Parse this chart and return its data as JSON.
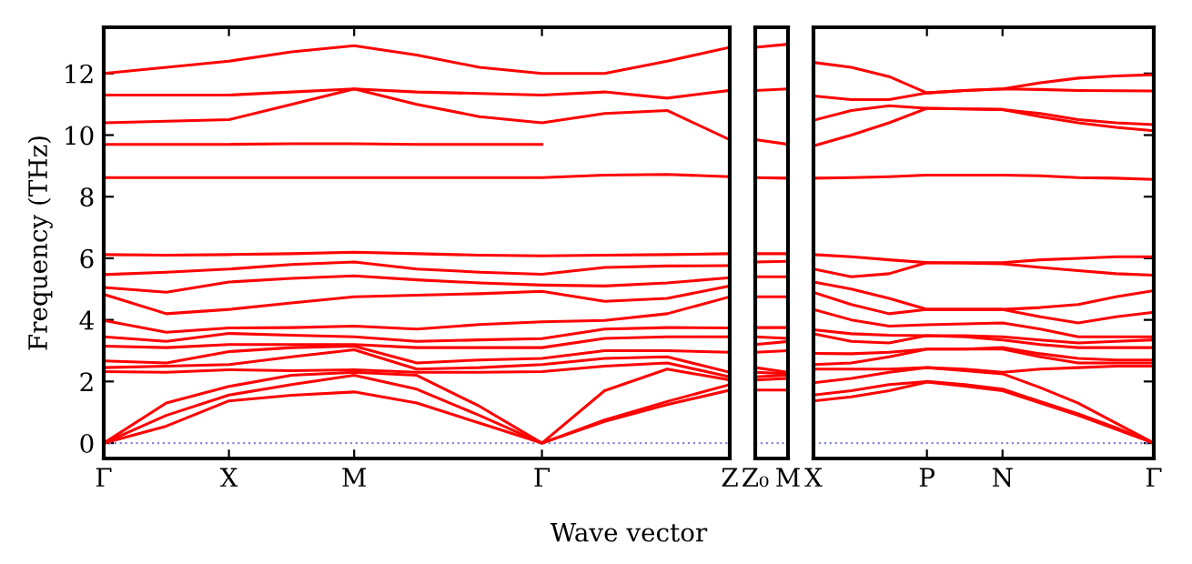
{
  "chart_data": [
    {
      "type": "line",
      "ylabel": "Frequency (THz)",
      "xlabel": "Wave vector",
      "categories": [
        "Γ",
        null,
        "X",
        null,
        "M",
        null,
        null,
        "Γ",
        null,
        null,
        "Z"
      ],
      "ylim": [
        -0.5,
        13.5
      ],
      "yticks": [
        0,
        2,
        4,
        6,
        8,
        10,
        12
      ],
      "ref_lines": [
        {
          "axis": "y",
          "value": 0,
          "color": "#8888dd",
          "line_style": "dotted"
        }
      ],
      "series": [
        {
          "color": "#ff0000",
          "values": [
            0,
            0.55,
            1.37,
            1.55,
            1.66,
            1.3,
            0.65,
            0,
            0.7,
            1.25,
            1.72
          ]
        },
        {
          "color": "#ff0000",
          "values": [
            0,
            0.9,
            1.56,
            1.9,
            2.2,
            1.75,
            0.9,
            0,
            0.75,
            1.35,
            1.9
          ]
        },
        {
          "color": "#ff0000",
          "values": [
            0,
            1.3,
            1.84,
            2.2,
            2.3,
            2.2,
            1.2,
            0,
            1.7,
            2.4,
            2.05
          ]
        },
        {
          "color": "#ff0000",
          "values": [
            2.32,
            2.3,
            2.38,
            2.35,
            2.38,
            2.3,
            2.3,
            2.32,
            2.5,
            2.6,
            2.15
          ]
        },
        {
          "color": "#ff0000",
          "values": [
            2.45,
            2.5,
            2.55,
            2.8,
            3.03,
            2.4,
            2.45,
            2.55,
            2.75,
            2.8,
            2.3
          ]
        },
        {
          "color": "#ff0000",
          "values": [
            2.67,
            2.6,
            2.97,
            3.1,
            3.15,
            2.6,
            2.7,
            2.75,
            3.0,
            3.0,
            2.95
          ]
        },
        {
          "color": "#ff0000",
          "values": [
            3.15,
            3.1,
            3.2,
            3.2,
            3.2,
            3.1,
            3.1,
            3.1,
            3.4,
            3.45,
            3.45
          ]
        },
        {
          "color": "#ff0000",
          "values": [
            3.45,
            3.3,
            3.56,
            3.5,
            3.45,
            3.3,
            3.35,
            3.39,
            3.7,
            3.75,
            3.74
          ]
        },
        {
          "color": "#ff0000",
          "values": [
            3.98,
            3.6,
            3.74,
            3.75,
            3.8,
            3.7,
            3.85,
            3.94,
            3.98,
            4.2,
            4.75
          ]
        },
        {
          "color": "#ff0000",
          "values": [
            4.83,
            4.2,
            4.34,
            4.55,
            4.75,
            4.8,
            4.85,
            4.93,
            4.6,
            4.7,
            5.1
          ]
        },
        {
          "color": "#ff0000",
          "values": [
            5.05,
            4.9,
            5.23,
            5.35,
            5.43,
            5.3,
            5.2,
            5.13,
            5.1,
            5.2,
            5.37
          ]
        },
        {
          "color": "#ff0000",
          "values": [
            5.47,
            5.55,
            5.65,
            5.8,
            5.88,
            5.65,
            5.55,
            5.48,
            5.7,
            5.75,
            5.76
          ]
        },
        {
          "color": "#ff0000",
          "values": [
            6.12,
            6.1,
            6.12,
            6.15,
            6.2,
            6.15,
            6.1,
            6.08,
            6.1,
            6.12,
            6.15
          ]
        },
        {
          "color": "#ff0000",
          "values": [
            8.62,
            8.62,
            8.62,
            8.62,
            8.62,
            8.62,
            8.62,
            8.62,
            8.7,
            8.72,
            8.65
          ]
        },
        {
          "color": "#ff0000",
          "values": [
            9.7,
            9.7,
            9.7,
            9.72,
            9.72,
            9.7,
            9.7,
            9.7,
            null,
            null,
            null
          ]
        },
        {
          "color": "#ff0000",
          "values": [
            10.4,
            10.45,
            10.5,
            11.0,
            11.5,
            11.0,
            10.6,
            10.4,
            10.7,
            10.8,
            9.85
          ]
        },
        {
          "color": "#ff0000",
          "values": [
            11.3,
            11.3,
            11.3,
            11.4,
            11.5,
            11.4,
            11.35,
            11.3,
            11.4,
            11.2,
            11.45
          ]
        },
        {
          "color": "#ff0000",
          "values": [
            12.0,
            12.2,
            12.4,
            12.7,
            12.9,
            12.6,
            12.2,
            12.0,
            12.0,
            12.4,
            12.85
          ]
        }
      ]
    },
    {
      "type": "line",
      "tick_labels": "x",
      "categories": [
        "Z₀",
        "M"
      ],
      "ylim": [
        -0.5,
        13.5
      ],
      "yticks": [
        0,
        2,
        4,
        6,
        8,
        10,
        12
      ],
      "ref_lines": [
        {
          "axis": "y",
          "value": 0,
          "color": "#8888dd",
          "line_style": "dotted"
        }
      ],
      "series": [
        {
          "color": "#ff0000",
          "values": [
            1.72,
            1.72
          ]
        },
        {
          "color": "#ff0000",
          "values": [
            2.05,
            2.1
          ]
        },
        {
          "color": "#ff0000",
          "values": [
            2.15,
            2.2
          ]
        },
        {
          "color": "#ff0000",
          "values": [
            2.3,
            2.25
          ]
        },
        {
          "color": "#ff0000",
          "values": [
            2.45,
            2.3
          ]
        },
        {
          "color": "#ff0000",
          "values": [
            2.95,
            3.0
          ]
        },
        {
          "color": "#ff0000",
          "values": [
            3.2,
            3.3
          ]
        },
        {
          "color": "#ff0000",
          "values": [
            3.45,
            3.4
          ]
        },
        {
          "color": "#ff0000",
          "values": [
            3.75,
            3.75
          ]
        },
        {
          "color": "#ff0000",
          "values": [
            4.75,
            4.75
          ]
        },
        {
          "color": "#ff0000",
          "values": [
            5.4,
            5.4
          ]
        },
        {
          "color": "#ff0000",
          "values": [
            5.88,
            5.9
          ]
        },
        {
          "color": "#ff0000",
          "values": [
            6.15,
            6.15
          ]
        },
        {
          "color": "#ff0000",
          "values": [
            8.62,
            8.6
          ]
        },
        {
          "color": "#ff0000",
          "values": [
            9.85,
            9.7
          ]
        },
        {
          "color": "#ff0000",
          "values": [
            11.45,
            11.5
          ]
        },
        {
          "color": "#ff0000",
          "values": [
            12.85,
            12.95
          ]
        }
      ]
    },
    {
      "type": "line",
      "tick_labels": "x",
      "categories": [
        "X",
        null,
        null,
        "P",
        null,
        "N",
        null,
        null,
        null,
        "Γ"
      ],
      "ylim": [
        -0.5,
        13.5
      ],
      "yticks": [
        0,
        2,
        4,
        6,
        8,
        10,
        12
      ],
      "ref_lines": [
        {
          "axis": "y",
          "value": 0,
          "color": "#8888dd",
          "line_style": "dotted"
        }
      ],
      "series": [
        {
          "color": "#ff0000",
          "values": [
            1.37,
            1.5,
            1.7,
            1.98,
            1.85,
            1.7,
            1.3,
            0.9,
            0.45,
            0
          ]
        },
        {
          "color": "#ff0000",
          "values": [
            1.56,
            1.7,
            1.9,
            2.0,
            1.9,
            1.75,
            1.35,
            0.95,
            0.5,
            0
          ]
        },
        {
          "color": "#ff0000",
          "values": [
            1.96,
            2.1,
            2.3,
            2.45,
            2.35,
            2.25,
            1.8,
            1.3,
            0.65,
            0
          ]
        },
        {
          "color": "#ff0000",
          "values": [
            2.4,
            2.4,
            2.4,
            2.45,
            2.4,
            2.3,
            2.4,
            2.45,
            2.5,
            2.5
          ]
        },
        {
          "color": "#ff0000",
          "values": [
            2.55,
            2.6,
            2.8,
            3.05,
            3.05,
            3.05,
            2.8,
            2.6,
            2.6,
            2.6
          ]
        },
        {
          "color": "#ff0000",
          "values": [
            2.91,
            2.9,
            2.95,
            3.05,
            3.05,
            3.1,
            2.9,
            2.75,
            2.7,
            2.7
          ]
        },
        {
          "color": "#ff0000",
          "values": [
            3.55,
            3.3,
            3.25,
            3.49,
            3.45,
            3.35,
            3.2,
            3.1,
            3.1,
            3.1
          ]
        },
        {
          "color": "#ff0000",
          "values": [
            3.68,
            3.55,
            3.5,
            3.49,
            3.49,
            3.45,
            3.35,
            3.25,
            3.3,
            3.35
          ]
        },
        {
          "color": "#ff0000",
          "values": [
            4.34,
            4.0,
            3.8,
            3.84,
            3.87,
            3.9,
            3.7,
            3.45,
            3.45,
            3.45
          ]
        },
        {
          "color": "#ff0000",
          "values": [
            4.89,
            4.5,
            4.2,
            4.34,
            4.34,
            4.34,
            4.1,
            3.9,
            4.1,
            4.25
          ]
        },
        {
          "color": "#ff0000",
          "values": [
            5.23,
            5.0,
            4.7,
            4.34,
            4.34,
            4.34,
            4.4,
            4.5,
            4.75,
            4.95
          ]
        },
        {
          "color": "#ff0000",
          "values": [
            5.65,
            5.4,
            5.5,
            5.86,
            5.84,
            5.82,
            5.7,
            5.6,
            5.5,
            5.45
          ]
        },
        {
          "color": "#ff0000",
          "values": [
            6.12,
            6.05,
            5.95,
            5.86,
            5.86,
            5.86,
            5.95,
            6.0,
            6.05,
            6.05
          ]
        },
        {
          "color": "#ff0000",
          "values": [
            8.6,
            8.62,
            8.65,
            8.7,
            8.7,
            8.7,
            8.68,
            8.62,
            8.6,
            8.56
          ]
        },
        {
          "color": "#ff0000",
          "values": [
            9.65,
            10.0,
            10.4,
            10.87,
            10.85,
            10.83,
            10.6,
            10.4,
            10.25,
            10.14
          ]
        },
        {
          "color": "#ff0000",
          "values": [
            10.48,
            10.8,
            10.95,
            10.87,
            10.85,
            10.83,
            10.7,
            10.5,
            10.4,
            10.34
          ]
        },
        {
          "color": "#ff0000",
          "values": [
            11.27,
            11.15,
            11.15,
            11.37,
            11.45,
            11.5,
            11.48,
            11.45,
            11.44,
            11.43
          ]
        },
        {
          "color": "#ff0000",
          "values": [
            12.36,
            12.2,
            11.9,
            11.37,
            11.45,
            11.5,
            11.7,
            11.85,
            11.92,
            11.96
          ]
        }
      ]
    }
  ]
}
